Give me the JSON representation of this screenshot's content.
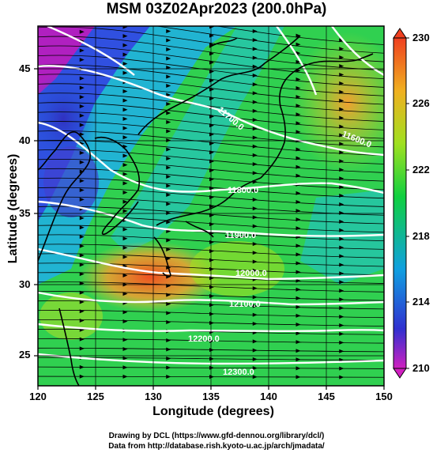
{
  "title": "MSM 03Z02Apr2023 (200.0hPa)",
  "xaxis": {
    "title": "Longitude (degrees)",
    "ticks": [
      "120",
      "125",
      "130",
      "135",
      "140",
      "145",
      "150"
    ],
    "range": [
      120,
      150
    ]
  },
  "yaxis": {
    "title": "Latitude  (degrees)",
    "ticks": [
      "25",
      "30",
      "35",
      "40",
      "45"
    ],
    "range": [
      22.4,
      47.6
    ]
  },
  "colorbar": {
    "labels": [
      "230",
      "226",
      "222",
      "218",
      "214",
      "210"
    ],
    "min": 210,
    "max": 230,
    "colors": [
      "#d020c0",
      "#3030d0",
      "#10a0e0",
      "#10d040",
      "#a0e020",
      "#f0b020",
      "#f04020"
    ]
  },
  "contours": {
    "labels": [
      "11700.0",
      "11600.0",
      "11800.0",
      "11900.0",
      "12000.0",
      "12100.0",
      "12200.0",
      "12300.0"
    ]
  },
  "credits": {
    "line1": "Drawing by DCL (https://www.gfd-dennou.org/library/dcl/)",
    "line2": "Data from http://database.rish.kyoto-u.ac.jp/arch/jmadata/"
  },
  "colors": {
    "contour": "#ffffff",
    "coastline": "#000000",
    "wind_arrows": "#000000"
  }
}
